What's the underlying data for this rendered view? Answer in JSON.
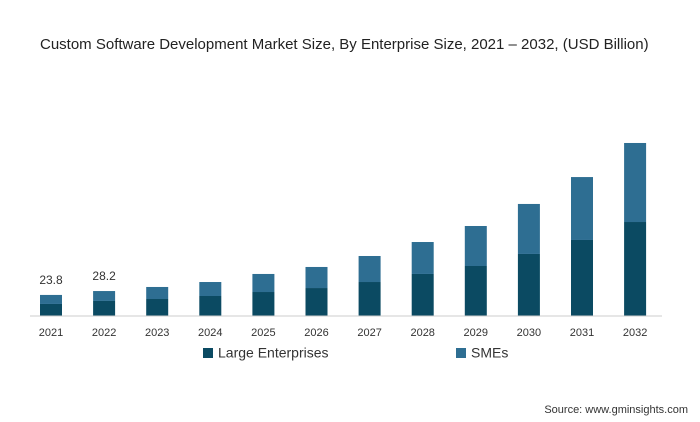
{
  "chart_data": {
    "type": "stacked_bar",
    "title": "Custom Software Development Market Size, By Enterprise Size, 2021 – 2032, (USD Billion)",
    "categories": [
      "2021",
      "2022",
      "2023",
      "2024",
      "2025",
      "2026",
      "2027",
      "2028",
      "2029",
      "2030",
      "2031",
      "2032"
    ],
    "series": [
      {
        "name": "Large Enterprises",
        "color": "#0b4a62",
        "values": [
          13.6,
          17.0,
          19.2,
          22.6,
          27.1,
          31.6,
          38.4,
          47.5,
          56.5,
          70.1,
          85.9,
          106.2
        ]
      },
      {
        "name": "SMEs",
        "color": "#2e6e92",
        "values": [
          10.2,
          11.2,
          13.6,
          15.8,
          20.4,
          23.8,
          29.4,
          36.1,
          45.2,
          56.5,
          71.1,
          89.3
        ]
      }
    ],
    "totals": [
      23.8,
      28.2,
      null,
      null,
      null,
      null,
      null,
      null,
      null,
      null,
      null,
      null
    ],
    "source": "Source: www.gminsights.com"
  }
}
